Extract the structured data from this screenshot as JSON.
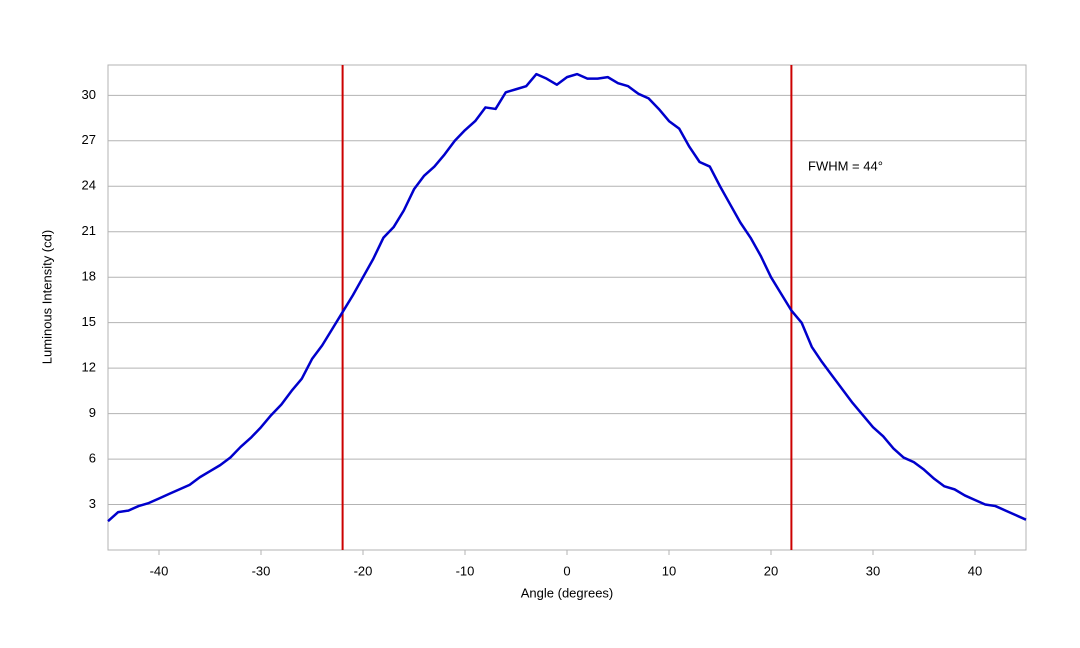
{
  "chart_data": {
    "type": "line",
    "xlabel": "Angle (degrees)",
    "ylabel": "Luminous Intensity (cd)",
    "annotation": "FWHM = 44°",
    "x": [
      -45,
      -44,
      -43,
      -42,
      -41,
      -40,
      -39,
      -38,
      -37,
      -36,
      -35,
      -34,
      -33,
      -32,
      -31,
      -30,
      -29,
      -28,
      -27,
      -26,
      -25,
      -24,
      -23,
      -22,
      -21,
      -20,
      -19,
      -18,
      -17,
      -16,
      -15,
      -14,
      -13,
      -12,
      -11,
      -10,
      -9,
      -8,
      -7,
      -6,
      -5,
      -4,
      -3,
      -2,
      -1,
      0,
      1,
      2,
      3,
      4,
      5,
      6,
      7,
      8,
      9,
      10,
      11,
      12,
      13,
      14,
      15,
      16,
      17,
      18,
      19,
      20,
      21,
      22,
      23,
      24,
      25,
      26,
      27,
      28,
      29,
      30,
      31,
      32,
      33,
      34,
      35,
      36,
      37,
      38,
      39,
      40,
      41,
      42,
      43,
      44,
      45
    ],
    "values": [
      1.9,
      2.5,
      2.6,
      2.9,
      3.1,
      3.4,
      3.7,
      4.0,
      4.3,
      4.8,
      5.2,
      5.6,
      6.1,
      6.8,
      7.4,
      8.1,
      8.9,
      9.6,
      10.5,
      11.3,
      12.6,
      13.5,
      14.6,
      15.7,
      16.8,
      18.0,
      19.2,
      20.6,
      21.3,
      22.4,
      23.8,
      24.7,
      25.3,
      26.1,
      27.0,
      27.7,
      28.3,
      29.2,
      29.1,
      30.2,
      30.4,
      30.6,
      31.4,
      31.1,
      30.7,
      31.2,
      31.4,
      31.1,
      31.1,
      31.2,
      30.8,
      30.6,
      30.1,
      29.8,
      29.1,
      28.3,
      27.8,
      26.6,
      25.6,
      25.3,
      24.0,
      22.8,
      21.6,
      20.6,
      19.4,
      18.0,
      16.9,
      15.8,
      15.0,
      13.4,
      12.4,
      11.5,
      10.6,
      9.7,
      8.9,
      8.1,
      7.5,
      6.7,
      6.1,
      5.8,
      5.3,
      4.7,
      4.2,
      4.0,
      3.6,
      3.3,
      3.0,
      2.9,
      2.6,
      2.3,
      2.0
    ],
    "color": "#0000cc",
    "vlines": [
      -22,
      22
    ],
    "vline_color": "#cc0000",
    "xlim": [
      -45,
      45
    ],
    "xticks": [
      -40,
      -30,
      -20,
      -10,
      0,
      10,
      20,
      30,
      40
    ],
    "ylim": [
      0,
      32
    ],
    "yticks": [
      3,
      6,
      9,
      12,
      15,
      18,
      21,
      24,
      27,
      30
    ],
    "grid": true
  }
}
